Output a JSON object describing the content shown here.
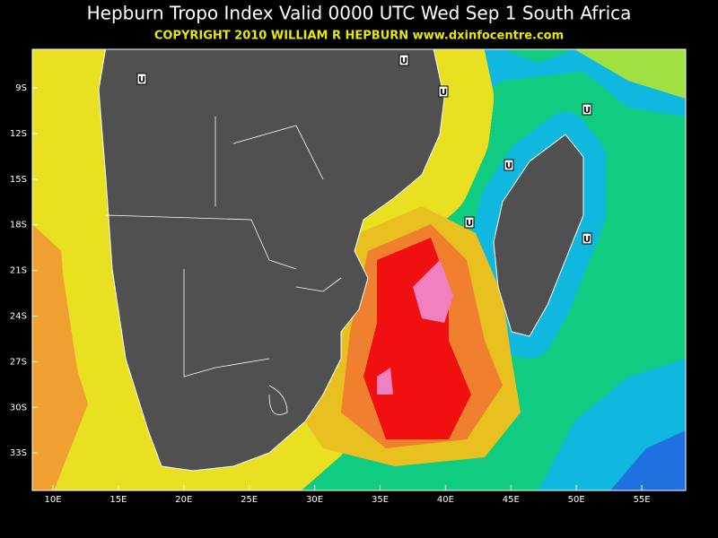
{
  "header": {
    "title": "Hepburn Tropo Index Valid 0000 UTC Wed Sep 1 South Africa",
    "copyright": "COPYRIGHT 2010   WILLIAM R HEPBURN   www.dxinfocentre.com"
  },
  "map": {
    "lat_labels": [
      "9S",
      "12S",
      "15S",
      "18S",
      "21S",
      "24S",
      "27S",
      "30S",
      "33S"
    ],
    "lon_labels": [
      "10E",
      "15E",
      "20E",
      "25E",
      "30E",
      "35E",
      "40E",
      "45E",
      "50E",
      "55E"
    ],
    "markers": [
      "U",
      "U",
      "U",
      "U",
      "U",
      "U",
      "U"
    ]
  }
}
